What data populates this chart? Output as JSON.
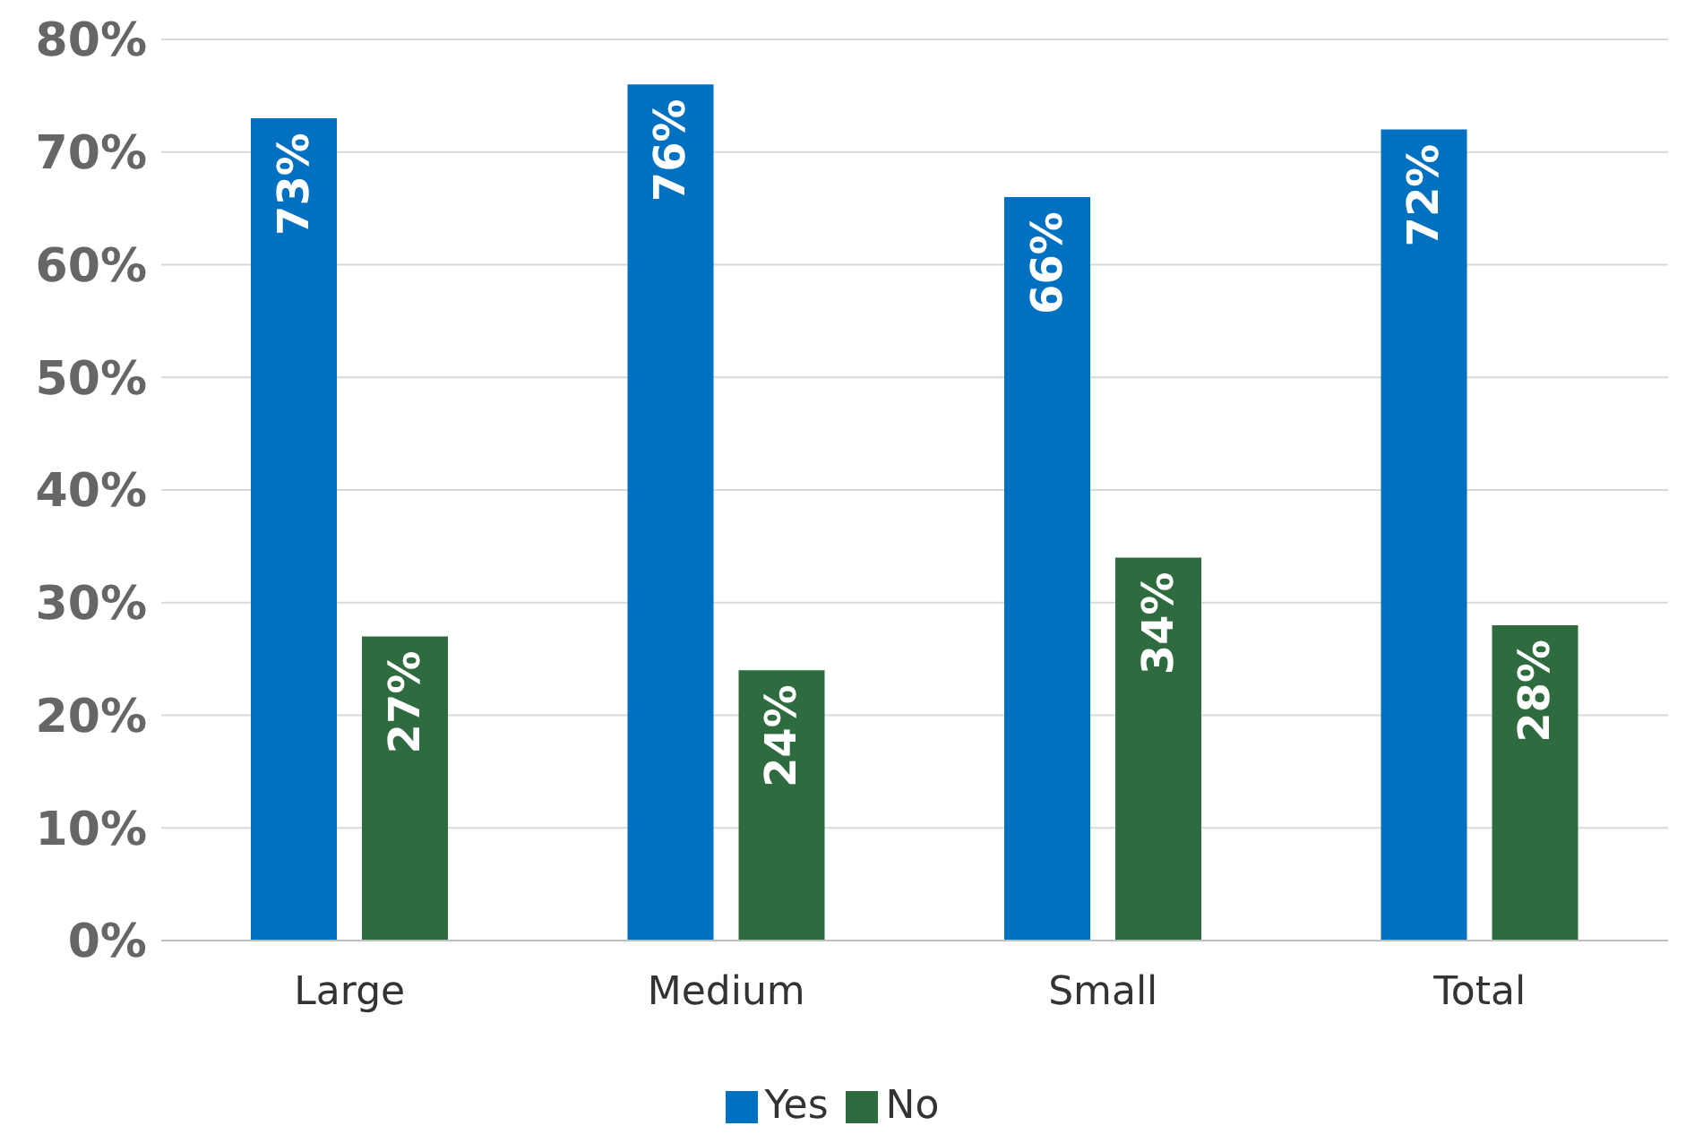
{
  "chart_data": {
    "type": "bar",
    "categories": [
      "Large",
      "Medium",
      "Small",
      "Total"
    ],
    "series": [
      {
        "name": "Yes",
        "color": "#0070c0",
        "values": [
          73,
          76,
          66,
          72
        ],
        "value_labels": [
          "73%",
          "76%",
          "66%",
          "72%"
        ]
      },
      {
        "name": "No",
        "color": "#2e6b3f",
        "values": [
          27,
          24,
          34,
          28
        ],
        "value_labels": [
          "27%",
          "24%",
          "34%",
          "28%"
        ]
      }
    ],
    "ylim": [
      0,
      80
    ],
    "yticks": [
      {
        "value": 0,
        "label": "0%"
      },
      {
        "value": 10,
        "label": "10%"
      },
      {
        "value": 20,
        "label": "20%"
      },
      {
        "value": 30,
        "label": "30%"
      },
      {
        "value": 40,
        "label": "40%"
      },
      {
        "value": 50,
        "label": "50%"
      },
      {
        "value": 60,
        "label": "60%"
      },
      {
        "value": 70,
        "label": "70%"
      },
      {
        "value": 80,
        "label": "80%"
      }
    ],
    "grid": "y",
    "legend": "bottom"
  }
}
